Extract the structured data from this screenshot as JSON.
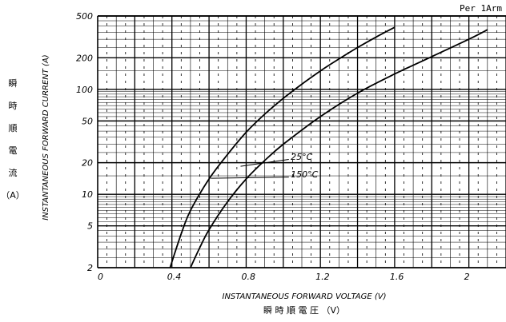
{
  "corner_note": "Per 1Arm",
  "ylabel_jp": [
    "瞬",
    "時",
    "順",
    "電",
    "流"
  ],
  "ylabel_jp_unit": "（A）",
  "xlabel_jp": "瞬 時 順 電 圧 （V）",
  "chart_data": {
    "type": "line",
    "title": "",
    "xlabel": "INSTANTANEOUS FORWARD VOLTAGE (V)",
    "ylabel": "INSTANTANEOUS FORWARD CURRENT (A)",
    "xlim": [
      0,
      2.2
    ],
    "ylim": [
      2,
      500
    ],
    "y_scale": "log",
    "x_ticks": [
      "0",
      "0.4",
      "0.8",
      "1.2",
      "1.6",
      "2"
    ],
    "x_tick_values": [
      0,
      0.4,
      0.8,
      1.2,
      1.6,
      2.0
    ],
    "y_ticks": [
      "2",
      "5",
      "10",
      "20",
      "50",
      "100",
      "200",
      "500"
    ],
    "y_tick_values": [
      2,
      5,
      10,
      20,
      50,
      100,
      200,
      500
    ],
    "grid": true,
    "series": [
      {
        "name": "25°C",
        "x": [
          0.39,
          0.45,
          0.5,
          0.6,
          0.7,
          0.8,
          0.9,
          1.0,
          1.1,
          1.2,
          1.3,
          1.4,
          1.5,
          1.6
        ],
        "y": [
          2,
          4.2,
          7,
          14,
          24,
          39,
          58,
          82,
          112,
          150,
          195,
          250,
          315,
          390
        ]
      },
      {
        "name": "150°C",
        "x": [
          0.5,
          0.55,
          0.6,
          0.7,
          0.8,
          0.9,
          1.0,
          1.2,
          1.4,
          1.6,
          1.8,
          2.0,
          2.1
        ],
        "y": [
          2,
          3.1,
          4.6,
          8.5,
          14,
          21,
          30,
          55,
          92,
          140,
          205,
          300,
          370
        ]
      }
    ],
    "annotations": [
      {
        "text": "25°C",
        "at": [
          1.04,
          22
        ]
      },
      {
        "text": "150°C",
        "at": [
          1.04,
          15
        ]
      }
    ]
  }
}
